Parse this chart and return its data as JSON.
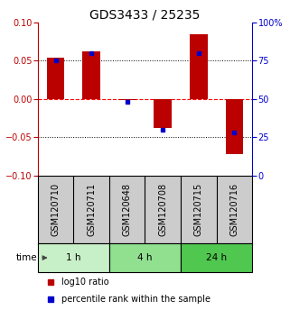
{
  "title": "GDS3433 / 25235",
  "samples": [
    "GSM120710",
    "GSM120711",
    "GSM120648",
    "GSM120708",
    "GSM120715",
    "GSM120716"
  ],
  "log10_ratio": [
    0.054,
    0.062,
    -0.002,
    -0.038,
    0.085,
    -0.072
  ],
  "percentile_rank": [
    75,
    80,
    48,
    30,
    80,
    28
  ],
  "groups": [
    {
      "label": "1 h",
      "indices": [
        0,
        1
      ],
      "color": "#c8f0c8"
    },
    {
      "label": "4 h",
      "indices": [
        2,
        3
      ],
      "color": "#90e090"
    },
    {
      "label": "24 h",
      "indices": [
        4,
        5
      ],
      "color": "#50c850"
    }
  ],
  "bar_color_red": "#bb0000",
  "bar_color_blue": "#0000cc",
  "ylim": [
    -0.1,
    0.1
  ],
  "right_ylim": [
    0,
    100
  ],
  "yticks_left": [
    -0.1,
    -0.05,
    0,
    0.05,
    0.1
  ],
  "yticks_right": [
    0,
    25,
    50,
    75,
    100
  ],
  "hlines": [
    -0.05,
    0,
    0.05
  ],
  "hline_colors": [
    "black",
    "red",
    "black"
  ],
  "hline_styles": [
    "dotted",
    "dashed",
    "dotted"
  ],
  "background_color": "#ffffff",
  "sample_box_color": "#cccccc",
  "bar_width": 0.5,
  "title_fontsize": 10,
  "tick_fontsize": 7,
  "label_fontsize": 7,
  "legend_fontsize": 7,
  "time_label": "time",
  "time_arrow_color": "#444444"
}
